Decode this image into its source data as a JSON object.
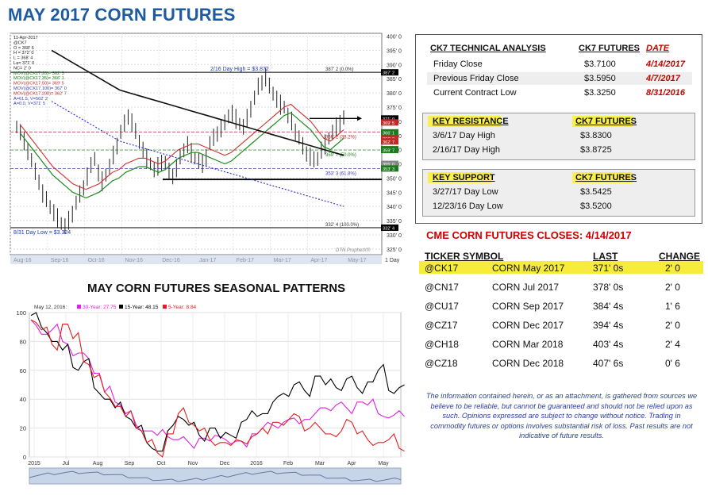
{
  "page_title": "MAY 2017 CORN FUTURES",
  "price_chart": {
    "info_lines": [
      "11-Apr-2017",
      "@CK7",
      "O = 368' 6",
      "H = 372' 0",
      "L = 368' 4",
      "La= 371' 0",
      "NC= 2' 0",
      "MOV(@CK17,20)= 362' 3",
      "MOV(@CK17,35)= 366' 1",
      "MOV(@CK17,50)= 369' 5",
      "MOV(@CK17,100)= 367' 0",
      "MOV(@CK17,200)= 362' 7",
      "A=61.5, V=502' 2",
      "A=0.0, V=371' 5"
    ],
    "y_ticks": [
      "400' 0",
      "395' 0",
      "390' 0",
      "385' 0",
      "380' 0",
      "375' 0",
      "370' 0",
      "365' 0",
      "360' 0",
      "355' 0",
      "350' 0",
      "345' 0",
      "340' 0",
      "335' 0",
      "330' 0",
      "325' 0"
    ],
    "x_ticks": [
      "Aug-16",
      "Sep-16",
      "Oct-16",
      "Nov-16",
      "Dec-16",
      "Jan-17",
      "Feb-17",
      "Mar-17",
      "Apr-17",
      "May-17"
    ],
    "annotations": {
      "high": "2/16 Day High = $3.872",
      "low": "8/31 Day Low = $3.324",
      "fib_0": "387' 2 (0.0%)",
      "fib_382": "366' 2 (38.2%)",
      "fib_50": "359' 7 (50.0%)",
      "fib_618": "353' 3 (61.8%)",
      "fib_100": "332' 4 (100.0%)",
      "watermark": "DTN ProphetX®",
      "corner": "1 Day"
    },
    "right_tags": [
      {
        "label": "387' 2",
        "color": "#000000"
      },
      {
        "label": "371' 0",
        "color": "#000000"
      },
      {
        "label": "369' 5",
        "color": "#c02a2a"
      },
      {
        "label": "366' 1",
        "color": "#1e7a1e"
      },
      {
        "label": "366' 2",
        "color": "#c02a2a"
      },
      {
        "label": "362' 7",
        "color": "#c02a2a"
      },
      {
        "label": "362' 3",
        "color": "#1e7a1e"
      },
      {
        "label": "359' 7",
        "color": "#1e7a1e"
      },
      {
        "label": "355' 0",
        "color": "#888888"
      },
      {
        "label": "353' 3",
        "color": "#1e7a1e"
      },
      {
        "label": "332' 4",
        "color": "#000000"
      }
    ]
  },
  "technical_analysis": {
    "header": {
      "c1": "CK7 TECHNICAL ANALYSIS",
      "c2": "CK7 FUTURES",
      "c3": "DATE"
    },
    "rows": [
      {
        "label": "Friday Close",
        "value": "$3.7100",
        "date": "4/14/2017"
      },
      {
        "label": "Previous Friday Close",
        "value": "$3.5950",
        "date": "4/7/2017"
      },
      {
        "label": "Current Contract Low",
        "value": "$3.3250",
        "date": "8/31/2016"
      }
    ],
    "resistance": {
      "header": "KEY RESISTANCE",
      "col": "CK7 FUTURES",
      "rows": [
        {
          "label": "3/6/17 Day High",
          "value": "$3.8300"
        },
        {
          "label": "2/16/17 Day High",
          "value": "$3.8725"
        }
      ]
    },
    "support": {
      "header": "KEY SUPPORT",
      "col": "CK7 FUTURES",
      "rows": [
        {
          "label": "3/27/17 Day Low",
          "value": "$3.5425"
        },
        {
          "label": "12/23/16 Day Low",
          "value": "$3.5200"
        }
      ]
    }
  },
  "closes": {
    "title": "CME CORN FUTURES CLOSES:  4/14/2017",
    "headers": {
      "ticker": "TICKER SYMBOL",
      "last": "LAST",
      "change": "CHANGE"
    },
    "rows": [
      {
        "ticker": "@CK17",
        "name": "CORN May 2017",
        "last": "371' 0s",
        "change": "2' 0"
      },
      {
        "ticker": "@CN17",
        "name": "CORN Jul 2017",
        "last": "378' 0s",
        "change": "2' 0"
      },
      {
        "ticker": "@CU17",
        "name": "CORN Sep 2017",
        "last": "384' 4s",
        "change": "1' 6"
      },
      {
        "ticker": "@CZ17",
        "name": "CORN Dec 2017",
        "last": "394' 4s",
        "change": "2' 0"
      },
      {
        "ticker": "@CH18",
        "name": "CORN Mar 2018",
        "last": "403' 4s",
        "change": "2' 4"
      },
      {
        "ticker": "@CZ18",
        "name": "CORN Dec 2018",
        "last": "407' 6s",
        "change": "0' 6"
      }
    ]
  },
  "disclaimer": "The information contained herein, or as an attachment, is gathered from sources we believe to be reliable, but cannot be guaranteed and should not be relied upon as such. Opinions expressed are subject to change without notice. Trading in commodity futures or options involves substantial risk of loss. Past results are not indicative of future results.",
  "chart_data": [
    {
      "type": "line",
      "title": "",
      "ylim": [
        323,
        401
      ],
      "x_labels": [
        "Aug-16",
        "Sep-16",
        "Oct-16",
        "Nov-16",
        "Dec-16",
        "Jan-17",
        "Feb-17",
        "Mar-17",
        "Apr-17",
        "May-17"
      ],
      "levels": {
        "high": 387.25,
        "low": 332.5,
        "resistance_line": 371.0,
        "support_line": 349.5,
        "fib_382": 366.25,
        "fib_50": 359.875,
        "fib_618": 353.375
      },
      "series": [
        {
          "name": "@CK7",
          "values": [
            368,
            366,
            363,
            360,
            356,
            352,
            349,
            345,
            342,
            340,
            338,
            336,
            334,
            333,
            335,
            338,
            341,
            344,
            347,
            351,
            354,
            357,
            352,
            349,
            351,
            354,
            358,
            362,
            366,
            369,
            372,
            370,
            366,
            363,
            360,
            357,
            355,
            353,
            354,
            356,
            355,
            352,
            351,
            354,
            357,
            360,
            362,
            359,
            357,
            356,
            355,
            358,
            362,
            364,
            366,
            368,
            369,
            372,
            373,
            371,
            369,
            368,
            371,
            375,
            378,
            382,
            384,
            386,
            382,
            380,
            378,
            376,
            375,
            372,
            370,
            367,
            364,
            361,
            359,
            358,
            356,
            357,
            360,
            362,
            364,
            366,
            368,
            370,
            371
          ]
        },
        {
          "name": "MOV(@CK17,20)",
          "values": [
            366,
            363,
            360,
            357,
            354,
            351,
            349,
            347,
            345,
            344,
            343,
            344,
            345,
            347,
            349,
            350,
            352,
            353,
            354,
            354,
            353,
            352,
            353,
            355,
            357,
            358,
            359,
            359,
            358,
            357,
            356,
            355,
            356,
            358,
            360,
            362,
            364,
            366,
            368,
            370,
            372,
            373,
            371,
            369,
            367,
            364,
            361,
            360,
            362,
            364
          ]
        },
        {
          "name": "MOV(@CK17,200)",
          "values": [
            395,
            393,
            391,
            389,
            387,
            385,
            383,
            381,
            380,
            379,
            378,
            377,
            376,
            375,
            374,
            373,
            372,
            371,
            370,
            369,
            368,
            367,
            366,
            365,
            364,
            363,
            362,
            361,
            360,
            359,
            358
          ]
        }
      ]
    },
    {
      "type": "line",
      "title": "MAY CORN FUTURES SEASONAL PATTERNS",
      "legend": "May 12, 2016",
      "ylim": [
        0,
        100
      ],
      "y_ticks": [
        0,
        20,
        40,
        60,
        80,
        100
      ],
      "x_labels": [
        "2015",
        "Jul",
        "Aug",
        "Sep",
        "Oct",
        "Nov",
        "Dec",
        "2016",
        "Feb",
        "Mar",
        "Apr",
        "May"
      ],
      "series": [
        {
          "name": "30-Year: 27.75",
          "color": "#e020e0",
          "values": [
            95,
            85,
            88,
            80,
            70,
            72,
            58,
            45,
            38,
            30,
            22,
            18,
            15,
            14,
            12,
            10,
            13,
            11,
            14,
            9,
            11,
            16,
            20,
            22,
            24,
            27,
            26,
            30,
            34,
            36,
            34,
            38,
            36,
            30,
            27,
            32
          ]
        },
        {
          "name": "15-Year: 48.15",
          "color": "#000000",
          "values": [
            98,
            90,
            80,
            74,
            62,
            66,
            48,
            40,
            34,
            28,
            20,
            10,
            4,
            18,
            28,
            22,
            15,
            20,
            13,
            15,
            24,
            32,
            30,
            38,
            44,
            50,
            46,
            56,
            50,
            48,
            54,
            48,
            52,
            60,
            46,
            48
          ]
        },
        {
          "name": "5-Year: 8.84",
          "color": "#e02020",
          "values": [
            95,
            88,
            78,
            92,
            82,
            66,
            55,
            45,
            35,
            28,
            20,
            10,
            3,
            16,
            30,
            24,
            18,
            12,
            10,
            8,
            11,
            14,
            20,
            24,
            22,
            30,
            18,
            24,
            16,
            14,
            26,
            16,
            12,
            10,
            12,
            6
          ]
        }
      ]
    }
  ]
}
